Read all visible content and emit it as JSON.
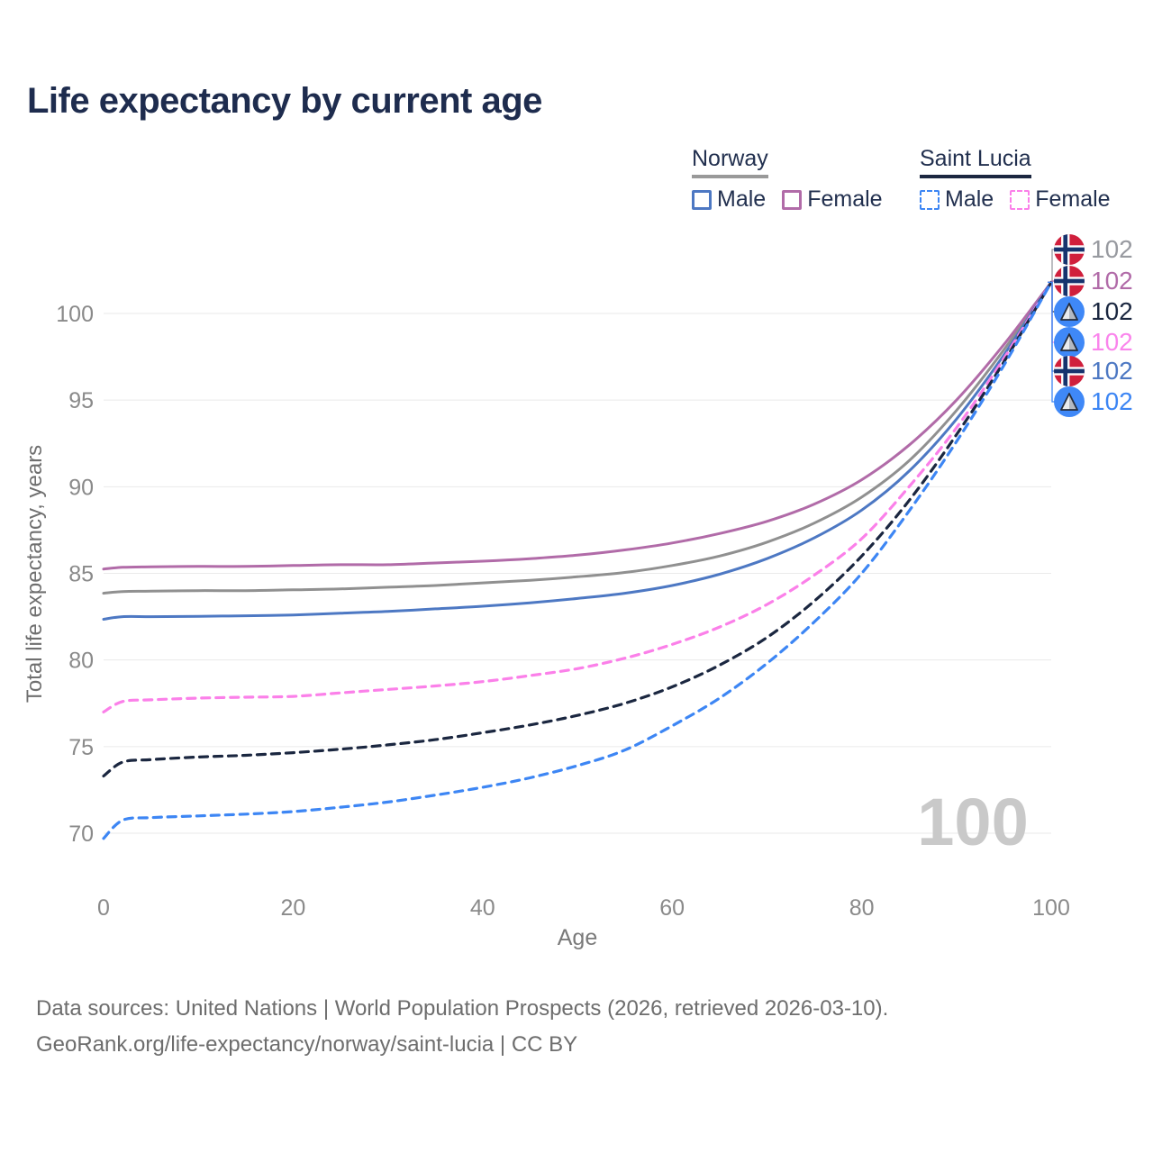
{
  "title": "Life expectancy by current age",
  "legend": {
    "groups": [
      {
        "label": "Norway",
        "line_style": "solid",
        "underline_color": "#999999",
        "items": [
          {
            "label": "Male",
            "color": "#4d78c3",
            "line_style": "solid"
          },
          {
            "label": "Female",
            "color": "#b16ba8",
            "line_style": "solid"
          }
        ]
      },
      {
        "label": "Saint Lucia",
        "line_style": "dashed",
        "underline_color": "#1b2740",
        "items": [
          {
            "label": "Male",
            "color": "#3d86f4",
            "line_style": "dashed"
          },
          {
            "label": "Female",
            "color": "#fb80e9",
            "line_style": "dashed"
          }
        ]
      }
    ]
  },
  "chart_data": {
    "type": "line",
    "title": "Life expectancy by current age",
    "xlabel": "Age",
    "ylabel": "Total life expectancy, years",
    "xlim": [
      0,
      100
    ],
    "ylim": [
      68,
      103
    ],
    "xticks": [
      0,
      20,
      40,
      60,
      80,
      100
    ],
    "yticks": [
      70,
      75,
      80,
      85,
      90,
      95,
      100
    ],
    "grid": "horizontal",
    "legend_position": "top-right",
    "x": [
      0,
      2,
      5,
      10,
      15,
      20,
      25,
      30,
      35,
      40,
      45,
      50,
      55,
      60,
      65,
      70,
      75,
      80,
      85,
      90,
      95,
      100
    ],
    "series": [
      {
        "name": "Norway",
        "sex": "both",
        "color": "#909090",
        "dashed": false,
        "values": [
          83.85,
          83.95,
          83.97,
          84.0,
          84.0,
          84.05,
          84.1,
          84.2,
          84.3,
          84.45,
          84.6,
          84.8,
          85.05,
          85.45,
          86.0,
          86.8,
          87.9,
          89.4,
          91.5,
          94.4,
          97.9,
          101.8
        ]
      },
      {
        "name": "Norway Female",
        "sex": "female",
        "color": "#b16ba8",
        "dashed": false,
        "values": [
          85.25,
          85.35,
          85.38,
          85.4,
          85.4,
          85.45,
          85.5,
          85.5,
          85.6,
          85.7,
          85.85,
          86.05,
          86.35,
          86.75,
          87.3,
          88.0,
          89.0,
          90.4,
          92.4,
          95.0,
          98.2,
          101.8
        ]
      },
      {
        "name": "Norway Male",
        "sex": "male",
        "color": "#4d78c3",
        "dashed": false,
        "values": [
          82.35,
          82.5,
          82.5,
          82.52,
          82.55,
          82.6,
          82.7,
          82.8,
          82.95,
          83.1,
          83.3,
          83.55,
          83.85,
          84.3,
          84.95,
          85.85,
          87.05,
          88.65,
          90.9,
          93.9,
          97.6,
          101.8
        ]
      },
      {
        "name": "Saint Lucia Female",
        "sex": "female",
        "color": "#fb80e9",
        "dashed": true,
        "values": [
          77.0,
          77.6,
          77.7,
          77.8,
          77.85,
          77.9,
          78.1,
          78.3,
          78.5,
          78.75,
          79.1,
          79.5,
          80.1,
          80.9,
          81.9,
          83.2,
          84.9,
          87.0,
          90.0,
          93.4,
          97.4,
          101.8
        ]
      },
      {
        "name": "Saint Lucia",
        "sex": "both",
        "color": "#1b2740",
        "dashed": true,
        "values": [
          73.3,
          74.1,
          74.25,
          74.4,
          74.5,
          74.65,
          74.85,
          75.1,
          75.4,
          75.8,
          76.25,
          76.8,
          77.5,
          78.45,
          79.7,
          81.3,
          83.4,
          86.0,
          89.2,
          93.0,
          97.2,
          101.8
        ]
      },
      {
        "name": "Saint Lucia Male",
        "sex": "male",
        "color": "#3d86f4",
        "dashed": true,
        "values": [
          69.7,
          70.75,
          70.9,
          71.0,
          71.1,
          71.25,
          71.5,
          71.8,
          72.2,
          72.65,
          73.2,
          73.9,
          74.8,
          76.2,
          77.8,
          79.8,
          82.2,
          85.0,
          88.6,
          92.6,
          97.0,
          101.8
        ]
      }
    ],
    "end_labels": [
      {
        "series": "Norway",
        "flag": "norway",
        "value": "102",
        "color": "#989aa0"
      },
      {
        "series": "Norway Female",
        "flag": "norway",
        "value": "102",
        "color": "#b16ba8"
      },
      {
        "series": "Saint Lucia",
        "flag": "saint-lucia",
        "value": "102",
        "color": "#1b2740"
      },
      {
        "series": "Saint Lucia Female",
        "flag": "saint-lucia",
        "value": "102",
        "color": "#fa85ec"
      },
      {
        "series": "Norway Male",
        "flag": "norway",
        "value": "102",
        "color": "#4d78c3"
      },
      {
        "series": "Saint Lucia Male",
        "flag": "saint-lucia",
        "value": "102",
        "color": "#3d86f4"
      }
    ]
  },
  "watermark": "100",
  "footer": {
    "line1": "Data sources: United Nations | World Population Prospects (2026, retrieved 2026-03-10).",
    "line2": "GeoRank.org/life-expectancy/norway/saint-lucia | CC BY"
  }
}
